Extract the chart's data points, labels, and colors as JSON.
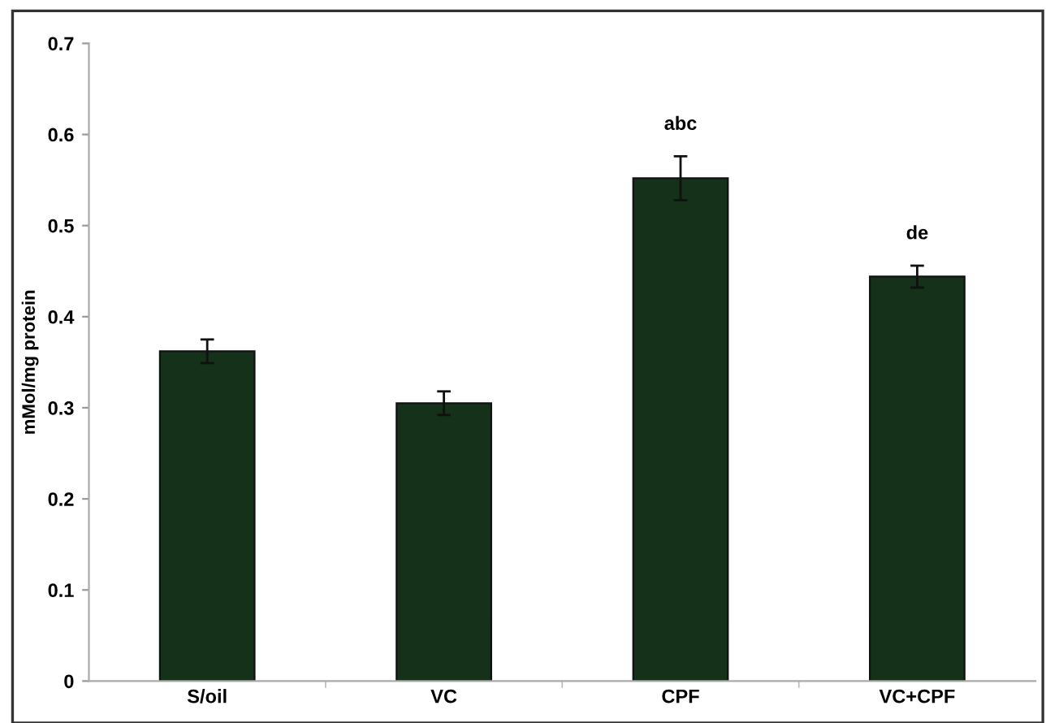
{
  "chart_data": {
    "type": "bar",
    "ylabel": "mMol/mg protein",
    "categories": [
      "S/oil",
      "VC",
      "CPF",
      "VC+CPF"
    ],
    "values": [
      0.362,
      0.305,
      0.552,
      0.444
    ],
    "errors": [
      0.013,
      0.013,
      0.024,
      0.012
    ],
    "color": "#163119",
    "ylim": [
      0,
      0.7
    ],
    "yticks": [
      {
        "value": 0,
        "label": "0"
      },
      0.1,
      0.2,
      0.3,
      0.4,
      0.5,
      0.6,
      0.7
    ],
    "annotations": [
      "abc",
      "de"
    ],
    "grid": false,
    "legend": false
  }
}
